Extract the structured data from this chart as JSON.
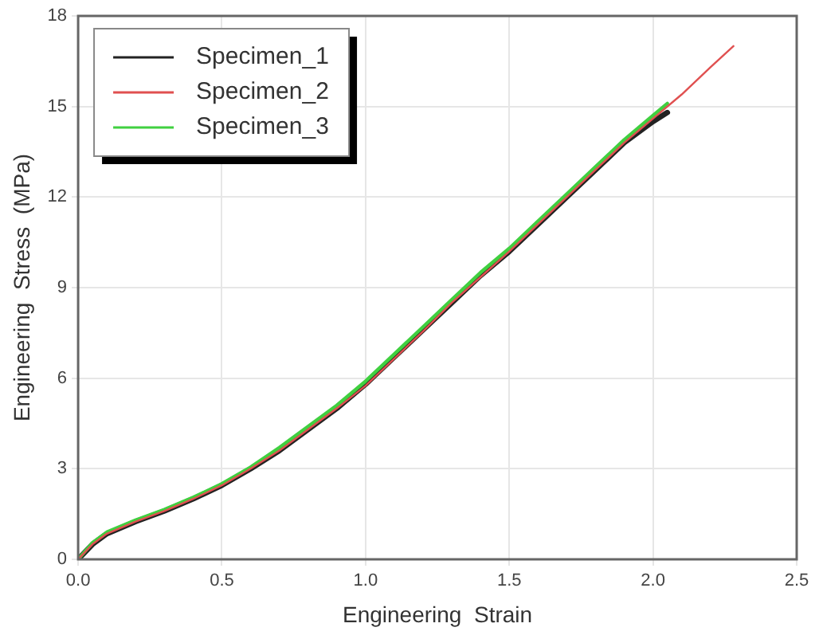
{
  "chart_data": {
    "type": "line",
    "xlabel": "Engineering  Strain",
    "ylabel": "Engineering  Stress  (MPa)",
    "xlim": [
      0,
      2.5
    ],
    "xticks": [
      {
        "value": 0,
        "label": "0.0"
      },
      0.5,
      {
        "value": 1,
        "label": "1.0"
      },
      1.5,
      {
        "value": 2,
        "label": "2.0"
      },
      2.5
    ],
    "ylim": [
      0,
      18
    ],
    "yticks": [
      0,
      3,
      6,
      9,
      12,
      15,
      18
    ],
    "grid": true,
    "legend": "top left",
    "marker": "none",
    "line_style": "solid",
    "series": [
      {
        "name": "Specimen_1",
        "color": "#222222",
        "x": [
          0,
          0.05,
          0.1,
          0.2,
          0.3,
          0.4,
          0.5,
          0.6,
          0.7,
          0.8,
          0.9,
          1.0,
          1.1,
          1.2,
          1.3,
          1.4,
          1.5,
          1.6,
          1.7,
          1.8,
          1.9,
          2.0,
          2.05
        ],
        "values": [
          0,
          0.5,
          0.85,
          1.25,
          1.6,
          2.0,
          2.45,
          3.0,
          3.6,
          4.3,
          5.0,
          5.8,
          6.7,
          7.6,
          8.5,
          9.4,
          10.2,
          11.1,
          12.0,
          12.9,
          13.8,
          14.5,
          14.8
        ]
      },
      {
        "name": "Specimen_2",
        "color": "#e05050",
        "x": [
          0,
          0.05,
          0.1,
          0.2,
          0.3,
          0.4,
          0.5,
          0.6,
          0.7,
          0.8,
          0.9,
          1.0,
          1.1,
          1.2,
          1.3,
          1.4,
          1.5,
          1.6,
          1.7,
          1.8,
          1.9,
          2.0,
          2.1,
          2.2,
          2.28
        ],
        "values": [
          0,
          0.5,
          0.85,
          1.25,
          1.6,
          2.0,
          2.45,
          3.0,
          3.6,
          4.3,
          5.0,
          5.75,
          6.65,
          7.55,
          8.5,
          9.35,
          10.2,
          11.1,
          12.0,
          12.9,
          13.8,
          14.6,
          15.4,
          16.3,
          17.0
        ]
      },
      {
        "name": "Specimen_3",
        "color": "#40d040",
        "x": [
          0,
          0.05,
          0.1,
          0.2,
          0.3,
          0.4,
          0.5,
          0.6,
          0.7,
          0.8,
          0.9,
          1.0,
          1.1,
          1.2,
          1.3,
          1.4,
          1.5,
          1.6,
          1.7,
          1.8,
          1.9,
          2.0,
          2.05
        ],
        "values": [
          0,
          0.55,
          0.9,
          1.3,
          1.65,
          2.05,
          2.5,
          3.05,
          3.7,
          4.4,
          5.1,
          5.9,
          6.8,
          7.7,
          8.6,
          9.5,
          10.3,
          11.2,
          12.1,
          13.0,
          13.9,
          14.7,
          15.1
        ]
      }
    ]
  }
}
